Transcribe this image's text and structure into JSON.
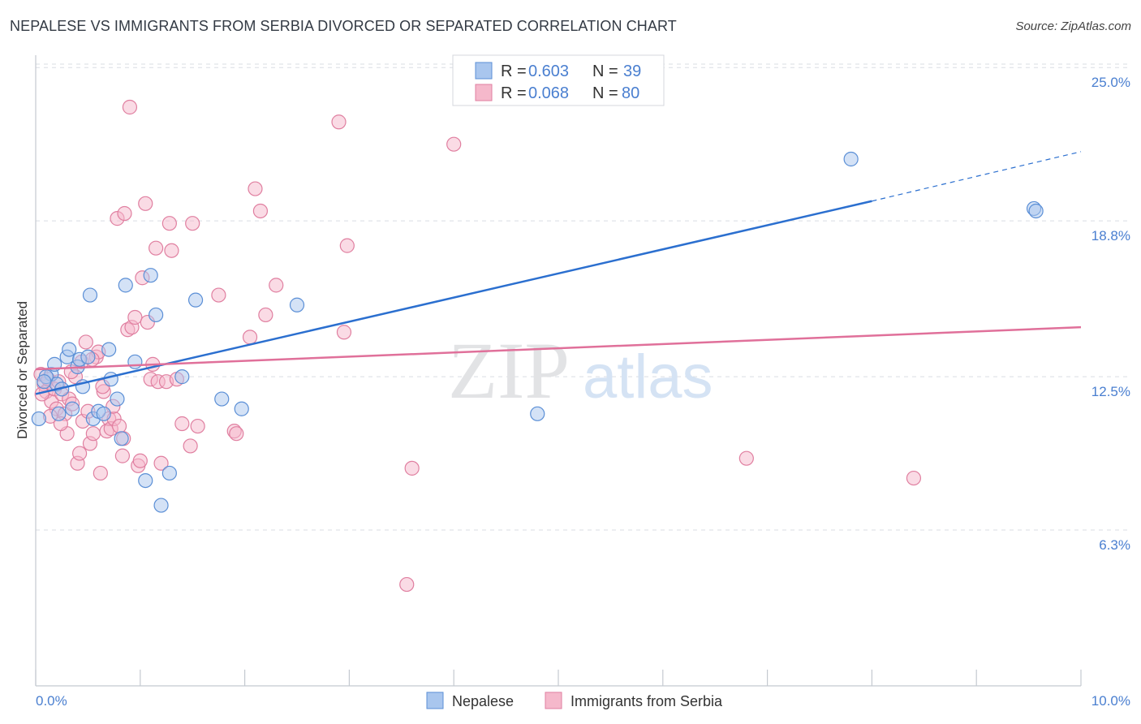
{
  "header": {
    "title": "NEPALESE VS IMMIGRANTS FROM SERBIA DIVORCED OR SEPARATED CORRELATION CHART",
    "source": "Source: ZipAtlas.com"
  },
  "watermark": {
    "zip": "ZIP",
    "atlas": "atlas"
  },
  "colors": {
    "blue_fill": "#a9c6ee",
    "blue_stroke": "#5b8fd6",
    "blue_line": "#2b6fcf",
    "pink_fill": "#f5b8cb",
    "pink_stroke": "#e07fa0",
    "pink_line": "#e0709a",
    "accent_text": "#4a7fd0",
    "grid": "#d9dde3"
  },
  "chart_data": {
    "type": "scatter",
    "title": "NEPALESE VS IMMIGRANTS FROM SERBIA DIVORCED OR SEPARATED CORRELATION CHART",
    "xlabel": "",
    "ylabel": "Divorced or Separated",
    "xlim": [
      0,
      10
    ],
    "ylim": [
      0,
      25.5
    ],
    "x_tick_labels": [
      "0.0%",
      "10.0%"
    ],
    "y_ticks": [
      {
        "value": 25.0,
        "label": "25.0%"
      },
      {
        "value": 18.8,
        "label": "18.8%"
      },
      {
        "value": 12.5,
        "label": "12.5%"
      },
      {
        "value": 6.3,
        "label": "6.3%"
      }
    ],
    "legend": [
      {
        "series": "Nepalese",
        "r_label": "R = ",
        "r": "0.603",
        "n_label": "N = ",
        "n": "39"
      },
      {
        "series": "Immigrants from Serbia",
        "r_label": "R = ",
        "r": "0.068",
        "n_label": "N = ",
        "n": "80"
      }
    ],
    "series": [
      {
        "name": "Nepalese",
        "trend": {
          "x0": 0.0,
          "y0": 11.8,
          "x1": 8.0,
          "y1": 19.6,
          "dash_x1": 10.0,
          "dash_y1": 21.6
        },
        "points": [
          [
            0.03,
            10.8
          ],
          [
            0.15,
            12.6
          ],
          [
            0.18,
            13.0
          ],
          [
            0.2,
            12.2
          ],
          [
            0.22,
            11.0
          ],
          [
            0.3,
            13.3
          ],
          [
            0.32,
            13.6
          ],
          [
            0.4,
            12.9
          ],
          [
            0.42,
            13.2
          ],
          [
            0.5,
            13.3
          ],
          [
            0.52,
            15.8
          ],
          [
            0.55,
            10.8
          ],
          [
            0.6,
            11.1
          ],
          [
            0.65,
            11.0
          ],
          [
            0.7,
            13.6
          ],
          [
            0.72,
            12.4
          ],
          [
            0.78,
            11.6
          ],
          [
            0.82,
            10.0
          ],
          [
            0.86,
            16.2
          ],
          [
            0.95,
            13.1
          ],
          [
            1.05,
            8.3
          ],
          [
            1.1,
            16.6
          ],
          [
            1.15,
            15.0
          ],
          [
            1.2,
            7.3
          ],
          [
            1.28,
            8.6
          ],
          [
            1.4,
            12.5
          ],
          [
            1.53,
            15.6
          ],
          [
            1.78,
            11.6
          ],
          [
            1.97,
            11.2
          ],
          [
            2.5,
            15.4
          ],
          [
            4.8,
            11.0
          ],
          [
            7.8,
            21.3
          ],
          [
            9.55,
            19.3
          ],
          [
            9.57,
            19.2
          ],
          [
            0.1,
            12.5
          ],
          [
            0.25,
            12.0
          ],
          [
            0.35,
            11.2
          ],
          [
            0.45,
            12.1
          ],
          [
            0.08,
            12.3
          ]
        ]
      },
      {
        "name": "Immigrants from Serbia",
        "trend": {
          "x0": 0.0,
          "y0": 12.8,
          "x1": 10.0,
          "y1": 14.5
        },
        "points": [
          [
            0.05,
            12.6
          ],
          [
            0.08,
            12.2
          ],
          [
            0.1,
            11.9
          ],
          [
            0.12,
            12.4
          ],
          [
            0.15,
            11.5
          ],
          [
            0.18,
            12.0
          ],
          [
            0.2,
            11.2
          ],
          [
            0.22,
            12.3
          ],
          [
            0.25,
            11.8
          ],
          [
            0.28,
            11.0
          ],
          [
            0.3,
            10.2
          ],
          [
            0.32,
            11.6
          ],
          [
            0.35,
            11.4
          ],
          [
            0.38,
            12.5
          ],
          [
            0.4,
            9.0
          ],
          [
            0.42,
            9.4
          ],
          [
            0.45,
            10.7
          ],
          [
            0.48,
            13.9
          ],
          [
            0.5,
            11.1
          ],
          [
            0.52,
            9.8
          ],
          [
            0.55,
            10.2
          ],
          [
            0.58,
            13.3
          ],
          [
            0.6,
            13.5
          ],
          [
            0.62,
            8.6
          ],
          [
            0.65,
            11.9
          ],
          [
            0.68,
            10.3
          ],
          [
            0.7,
            10.8
          ],
          [
            0.72,
            10.4
          ],
          [
            0.75,
            10.8
          ],
          [
            0.78,
            18.9
          ],
          [
            0.8,
            10.5
          ],
          [
            0.83,
            9.3
          ],
          [
            0.85,
            19.1
          ],
          [
            0.88,
            14.4
          ],
          [
            0.9,
            23.4
          ],
          [
            0.92,
            14.5
          ],
          [
            0.95,
            14.9
          ],
          [
            0.98,
            8.9
          ],
          [
            1.0,
            9.1
          ],
          [
            1.02,
            16.5
          ],
          [
            1.05,
            19.5
          ],
          [
            1.07,
            14.7
          ],
          [
            1.1,
            12.4
          ],
          [
            1.12,
            13.0
          ],
          [
            1.15,
            17.7
          ],
          [
            1.17,
            12.3
          ],
          [
            1.2,
            9.0
          ],
          [
            1.25,
            12.3
          ],
          [
            1.28,
            18.7
          ],
          [
            1.3,
            17.6
          ],
          [
            1.35,
            12.4
          ],
          [
            1.4,
            10.6
          ],
          [
            1.48,
            9.7
          ],
          [
            1.5,
            18.7
          ],
          [
            1.55,
            10.5
          ],
          [
            1.75,
            15.8
          ],
          [
            1.9,
            10.3
          ],
          [
            1.92,
            10.2
          ],
          [
            2.05,
            14.1
          ],
          [
            2.1,
            20.1
          ],
          [
            2.15,
            19.2
          ],
          [
            2.2,
            15.0
          ],
          [
            2.3,
            16.2
          ],
          [
            2.9,
            22.8
          ],
          [
            2.95,
            14.3
          ],
          [
            2.98,
            17.8
          ],
          [
            3.6,
            8.8
          ],
          [
            3.55,
            4.1
          ],
          [
            4.0,
            21.9
          ],
          [
            6.8,
            9.2
          ],
          [
            8.4,
            8.4
          ],
          [
            0.06,
            11.8
          ],
          [
            0.14,
            10.9
          ],
          [
            0.24,
            10.6
          ],
          [
            0.34,
            12.7
          ],
          [
            0.44,
            13.1
          ],
          [
            0.54,
            13.2
          ],
          [
            0.64,
            12.1
          ],
          [
            0.74,
            11.3
          ],
          [
            0.84,
            10.0
          ]
        ]
      }
    ]
  },
  "bottom_legend": {
    "blue_label": "Nepalese",
    "pink_label": "Immigrants from Serbia"
  }
}
